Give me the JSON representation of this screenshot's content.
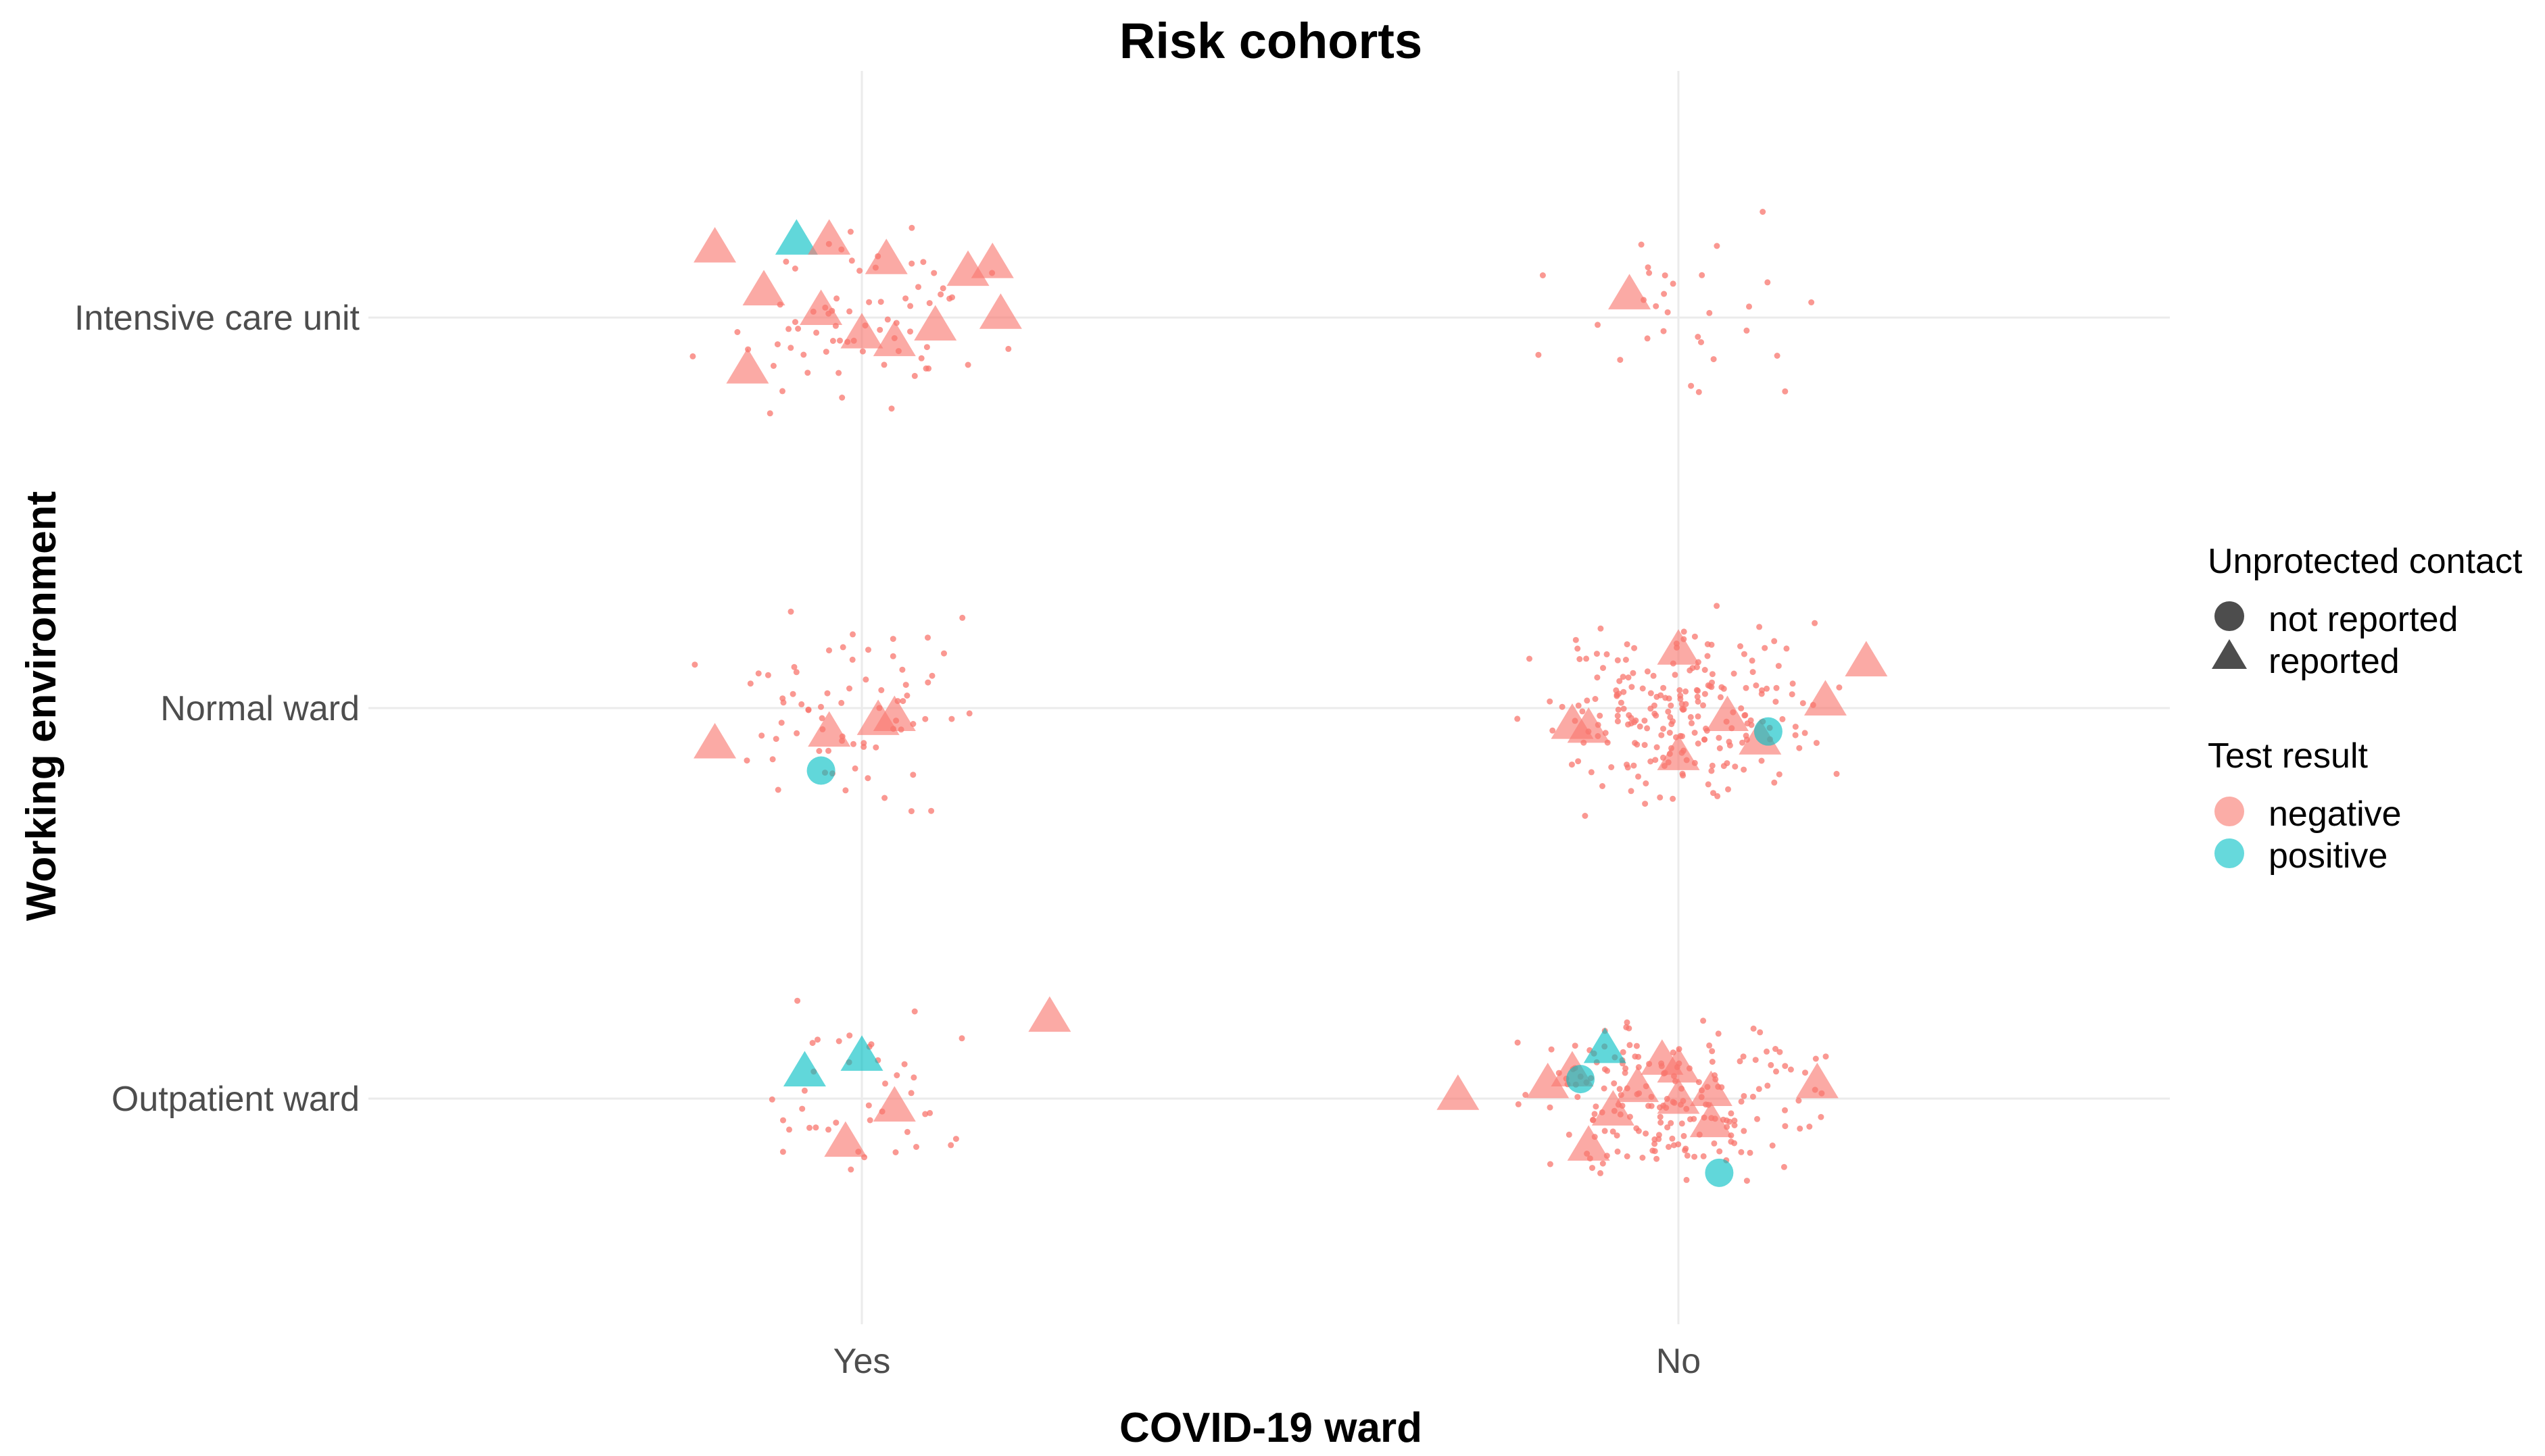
{
  "chart_data": {
    "type": "scatter",
    "title": "Risk cohorts",
    "xlabel": "COVID-19 ward",
    "ylabel": "Working environment",
    "x_categories": [
      "Yes",
      "No"
    ],
    "y_categories": [
      "Outpatient ward",
      "Normal ward",
      "Intensive care unit"
    ],
    "grid": true,
    "jitter": true,
    "colors": {
      "negative": "#f8766d",
      "positive": "#00bfc4",
      "legend_shape": "#4d4d4d"
    },
    "legend": {
      "position": "right",
      "shape_title": "Unprotected contact",
      "shape_items": [
        {
          "key": "not reported",
          "label": "not reported",
          "shape": "circle"
        },
        {
          "key": "reported",
          "label": "reported",
          "shape": "triangle"
        }
      ],
      "color_title": "Test result",
      "color_items": [
        {
          "key": "negative",
          "label": "negative"
        },
        {
          "key": "positive",
          "label": "positive"
        }
      ]
    },
    "dense_dot_counts": [
      {
        "x": "Yes",
        "y": "Intensive care unit",
        "n": 70
      },
      {
        "x": "No",
        "y": "Intensive care unit",
        "n": 30
      },
      {
        "x": "Yes",
        "y": "Normal ward",
        "n": 70
      },
      {
        "x": "No",
        "y": "Normal ward",
        "n": 220
      },
      {
        "x": "Yes",
        "y": "Outpatient ward",
        "n": 40
      },
      {
        "x": "No",
        "y": "Outpatient ward",
        "n": 190
      }
    ],
    "marked_points": [
      {
        "x": 0.82,
        "y": 3.18,
        "contact": "reported",
        "result": "negative"
      },
      {
        "x": 0.92,
        "y": 3.2,
        "contact": "reported",
        "result": "positive"
      },
      {
        "x": 0.96,
        "y": 3.2,
        "contact": "reported",
        "result": "negative"
      },
      {
        "x": 1.03,
        "y": 3.15,
        "contact": "reported",
        "result": "negative"
      },
      {
        "x": 0.88,
        "y": 3.07,
        "contact": "reported",
        "result": "negative"
      },
      {
        "x": 0.95,
        "y": 3.02,
        "contact": "reported",
        "result": "negative"
      },
      {
        "x": 1.13,
        "y": 3.12,
        "contact": "reported",
        "result": "negative"
      },
      {
        "x": 1.16,
        "y": 3.14,
        "contact": "reported",
        "result": "negative"
      },
      {
        "x": 1.17,
        "y": 3.01,
        "contact": "reported",
        "result": "negative"
      },
      {
        "x": 1.09,
        "y": 2.98,
        "contact": "reported",
        "result": "negative"
      },
      {
        "x": 1.0,
        "y": 2.96,
        "contact": "reported",
        "result": "negative"
      },
      {
        "x": 1.04,
        "y": 2.94,
        "contact": "reported",
        "result": "negative"
      },
      {
        "x": 0.86,
        "y": 2.87,
        "contact": "reported",
        "result": "negative"
      },
      {
        "x": 1.94,
        "y": 3.06,
        "contact": "reported",
        "result": "negative"
      },
      {
        "x": 0.82,
        "y": 1.91,
        "contact": "reported",
        "result": "negative"
      },
      {
        "x": 0.96,
        "y": 1.94,
        "contact": "reported",
        "result": "negative"
      },
      {
        "x": 1.02,
        "y": 1.97,
        "contact": "reported",
        "result": "negative"
      },
      {
        "x": 1.04,
        "y": 1.98,
        "contact": "reported",
        "result": "negative"
      },
      {
        "x": 0.95,
        "y": 1.84,
        "contact": "not reported",
        "result": "positive"
      },
      {
        "x": 2.0,
        "y": 2.15,
        "contact": "reported",
        "result": "negative"
      },
      {
        "x": 2.23,
        "y": 2.12,
        "contact": "reported",
        "result": "negative"
      },
      {
        "x": 2.18,
        "y": 2.02,
        "contact": "reported",
        "result": "negative"
      },
      {
        "x": 1.87,
        "y": 1.96,
        "contact": "reported",
        "result": "negative"
      },
      {
        "x": 1.89,
        "y": 1.95,
        "contact": "reported",
        "result": "negative"
      },
      {
        "x": 2.06,
        "y": 1.98,
        "contact": "reported",
        "result": "negative"
      },
      {
        "x": 2.1,
        "y": 1.92,
        "contact": "reported",
        "result": "negative"
      },
      {
        "x": 2.11,
        "y": 1.94,
        "contact": "not reported",
        "result": "positive"
      },
      {
        "x": 2.0,
        "y": 1.88,
        "contact": "reported",
        "result": "negative"
      },
      {
        "x": 0.93,
        "y": 1.07,
        "contact": "reported",
        "result": "positive"
      },
      {
        "x": 1.0,
        "y": 1.11,
        "contact": "reported",
        "result": "positive"
      },
      {
        "x": 1.23,
        "y": 1.21,
        "contact": "reported",
        "result": "negative"
      },
      {
        "x": 1.04,
        "y": 0.98,
        "contact": "reported",
        "result": "negative"
      },
      {
        "x": 0.98,
        "y": 0.89,
        "contact": "reported",
        "result": "negative"
      },
      {
        "x": 1.73,
        "y": 1.01,
        "contact": "reported",
        "result": "negative"
      },
      {
        "x": 1.91,
        "y": 1.13,
        "contact": "reported",
        "result": "positive"
      },
      {
        "x": 1.87,
        "y": 1.07,
        "contact": "reported",
        "result": "negative"
      },
      {
        "x": 1.84,
        "y": 1.04,
        "contact": "reported",
        "result": "negative"
      },
      {
        "x": 1.88,
        "y": 1.05,
        "contact": "not reported",
        "result": "positive"
      },
      {
        "x": 1.98,
        "y": 1.1,
        "contact": "reported",
        "result": "negative"
      },
      {
        "x": 2.0,
        "y": 1.08,
        "contact": "reported",
        "result": "negative"
      },
      {
        "x": 1.95,
        "y": 1.03,
        "contact": "reported",
        "result": "negative"
      },
      {
        "x": 2.04,
        "y": 1.02,
        "contact": "reported",
        "result": "negative"
      },
      {
        "x": 2.17,
        "y": 1.04,
        "contact": "reported",
        "result": "negative"
      },
      {
        "x": 1.92,
        "y": 0.97,
        "contact": "reported",
        "result": "negative"
      },
      {
        "x": 2.04,
        "y": 0.94,
        "contact": "reported",
        "result": "negative"
      },
      {
        "x": 1.89,
        "y": 0.88,
        "contact": "reported",
        "result": "negative"
      },
      {
        "x": 2.05,
        "y": 0.81,
        "contact": "not reported",
        "result": "positive"
      },
      {
        "x": 2.0,
        "y": 1.0,
        "contact": "reported",
        "result": "negative"
      }
    ]
  }
}
